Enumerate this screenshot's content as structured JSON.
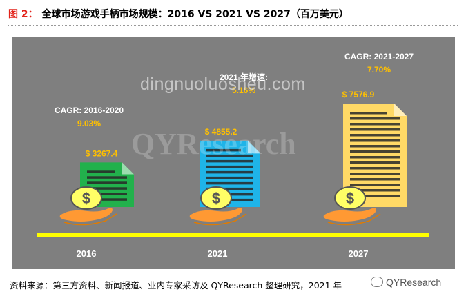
{
  "figure": {
    "number_label": "图 2：",
    "title": "全球市场游戏手柄市场规模：2016 VS 2021 VS 2027（百万美元）",
    "source": "资料来源：第三方资料、新闻报道、业内专家采访及 QYResearch 整理研究，2021 年",
    "brand": "QYResearch",
    "watermark_text": "dingnuoluosheu.com",
    "watermark_logo": "QYResearch"
  },
  "chart_data": {
    "type": "bar",
    "categories": [
      "2016",
      "2021",
      "2027"
    ],
    "values": [
      3267.4,
      4855.2,
      7576.9
    ],
    "value_labels": [
      "$ 3267.4",
      "$ 4855.2",
      "$ 7576.9"
    ],
    "annotations": [
      {
        "label": "CAGR: 2016-2020",
        "value": "9.03%"
      },
      {
        "label": "2021 年增速:",
        "value": "5.16%"
      },
      {
        "label": "CAGR: 2021-2027",
        "value": "7.70%"
      }
    ],
    "bar_colors": [
      "#22b14c",
      "#1fb4e8",
      "#ffd966"
    ],
    "icon": "document-with-coin-and-hand-icon",
    "colors": {
      "background": "#7f7f7f",
      "axis_line": "#ffff00",
      "label_text": "#ffc000",
      "hand": "#ff9933",
      "coin": "#ffff66"
    },
    "title": "",
    "xlabel": "",
    "ylabel": "",
    "grid": false,
    "legend": "none"
  }
}
